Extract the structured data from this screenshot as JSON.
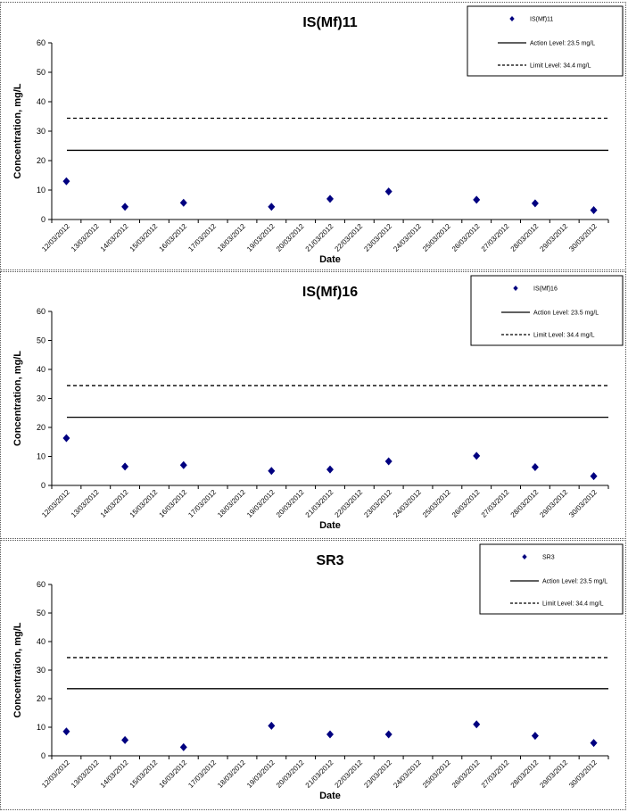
{
  "chart_data": [
    {
      "type": "scatter",
      "title": "IS(Mf)11",
      "xlabel": "Date",
      "ylabel": "Concentration, mg/L",
      "ylim": [
        0,
        60
      ],
      "yticks": [
        0,
        10,
        20,
        30,
        40,
        50,
        60
      ],
      "categories": [
        "12/03/2012",
        "13/03/2012",
        "14/03/2012",
        "15/03/2012",
        "16/03/2012",
        "17/03/2012",
        "18/03/2012",
        "19/03/2012",
        "20/03/2012",
        "21/03/2012",
        "22/03/2012",
        "23/03/2012",
        "24/03/2012",
        "25/03/2012",
        "26/03/2012",
        "27/03/2012",
        "28/03/2012",
        "29/03/2012",
        "30/03/2012"
      ],
      "series": [
        {
          "name": "IS(Mf)11",
          "marker": "diamond",
          "color": "#000080",
          "points": [
            [
              "12/03/2012",
              13
            ],
            [
              "14/03/2012",
              4.3
            ],
            [
              "16/03/2012",
              5.7
            ],
            [
              "19/03/2012",
              4.3
            ],
            [
              "21/03/2012",
              7
            ],
            [
              "23/03/2012",
              9.5
            ],
            [
              "26/03/2012",
              6.7
            ],
            [
              "28/03/2012",
              5.5
            ],
            [
              "30/03/2012",
              3.2
            ]
          ]
        }
      ],
      "reference_lines": [
        {
          "name": "Action Level: 23.5 mg/L",
          "value": 23.5,
          "style": "solid"
        },
        {
          "name": "Limit Level: 34.4 mg/L",
          "value": 34.4,
          "style": "dashed"
        }
      ],
      "legend": "top-right"
    },
    {
      "type": "scatter",
      "title": "IS(Mf)16",
      "xlabel": "Date",
      "ylabel": "Concentration, mg/L",
      "ylim": [
        0,
        60
      ],
      "yticks": [
        0,
        10,
        20,
        30,
        40,
        50,
        60
      ],
      "categories": [
        "12/03/2012",
        "13/03/2012",
        "14/03/2012",
        "15/03/2012",
        "16/03/2012",
        "17/03/2012",
        "18/03/2012",
        "19/03/2012",
        "20/03/2012",
        "21/03/2012",
        "22/03/2012",
        "23/03/2012",
        "24/03/2012",
        "25/03/2012",
        "26/03/2012",
        "27/03/2012",
        "28/03/2012",
        "29/03/2012",
        "30/03/2012"
      ],
      "series": [
        {
          "name": "IS(Mf)16",
          "marker": "diamond",
          "color": "#000080",
          "points": [
            [
              "12/03/2012",
              16.3
            ],
            [
              "14/03/2012",
              6.5
            ],
            [
              "16/03/2012",
              7
            ],
            [
              "19/03/2012",
              5
            ],
            [
              "21/03/2012",
              5.5
            ],
            [
              "23/03/2012",
              8.3
            ],
            [
              "26/03/2012",
              10.2
            ],
            [
              "28/03/2012",
              6.3
            ],
            [
              "30/03/2012",
              3.2
            ]
          ]
        }
      ],
      "reference_lines": [
        {
          "name": "Action Level: 23.5 mg/L",
          "value": 23.5,
          "style": "solid"
        },
        {
          "name": "Limit Level: 34.4 mg/L",
          "value": 34.4,
          "style": "dashed"
        }
      ],
      "legend": "top-right"
    },
    {
      "type": "scatter",
      "title": "SR3",
      "xlabel": "Date",
      "ylabel": "Concentration, mg/L",
      "ylim": [
        0,
        60
      ],
      "yticks": [
        0,
        10,
        20,
        30,
        40,
        50,
        60
      ],
      "categories": [
        "12/03/2012",
        "13/03/2012",
        "14/03/2012",
        "15/03/2012",
        "16/03/2012",
        "17/03/2012",
        "18/03/2012",
        "19/03/2012",
        "20/03/2012",
        "21/03/2012",
        "22/03/2012",
        "23/03/2012",
        "24/03/2012",
        "25/03/2012",
        "26/03/2012",
        "27/03/2012",
        "28/03/2012",
        "29/03/2012",
        "30/03/2012"
      ],
      "series": [
        {
          "name": "SR3",
          "marker": "diamond",
          "color": "#000080",
          "points": [
            [
              "12/03/2012",
              8.5
            ],
            [
              "14/03/2012",
              5.5
            ],
            [
              "16/03/2012",
              3
            ],
            [
              "19/03/2012",
              10.5
            ],
            [
              "21/03/2012",
              7.5
            ],
            [
              "23/03/2012",
              7.5
            ],
            [
              "26/03/2012",
              11
            ],
            [
              "28/03/2012",
              7
            ],
            [
              "30/03/2012",
              4.5
            ]
          ]
        }
      ],
      "reference_lines": [
        {
          "name": "Action Level: 23.5 mg/L",
          "value": 23.5,
          "style": "solid"
        },
        {
          "name": "Limit Level: 34.4 mg/L",
          "value": 34.4,
          "style": "dashed"
        }
      ],
      "legend": "top-right"
    }
  ]
}
